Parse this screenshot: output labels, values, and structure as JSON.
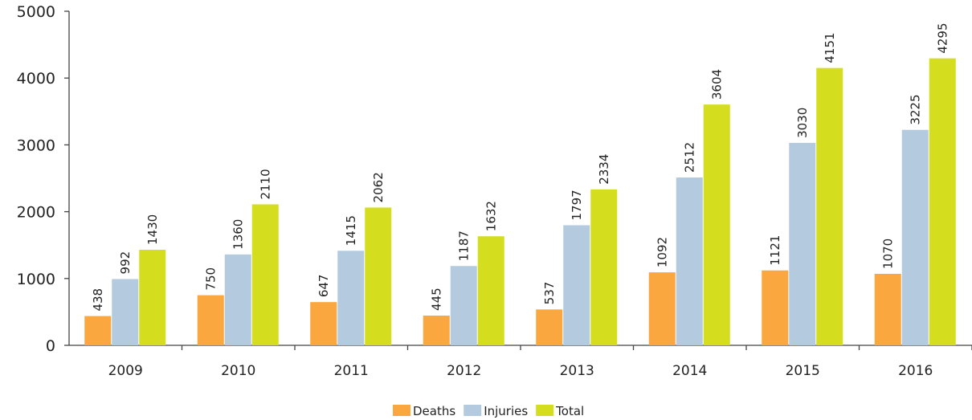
{
  "chart_data": {
    "type": "bar",
    "categories": [
      "2009",
      "2010",
      "2011",
      "2012",
      "2013",
      "2014",
      "2015",
      "2016"
    ],
    "series": [
      {
        "name": "Deaths",
        "color": "#F9A73E",
        "values": [
          438,
          750,
          647,
          445,
          537,
          1092,
          1121,
          1070
        ]
      },
      {
        "name": "Injuries",
        "color": "#B4CBDF",
        "values": [
          992,
          1360,
          1415,
          1187,
          1797,
          2512,
          3030,
          3225
        ]
      },
      {
        "name": "Total",
        "color": "#D4DE1E",
        "values": [
          1430,
          2110,
          2062,
          1632,
          2334,
          3604,
          4151,
          4295
        ]
      }
    ],
    "yticks": [
      0,
      1000,
      2000,
      3000,
      4000,
      5000
    ],
    "ylim": [
      0,
      5000
    ],
    "legend_position": "bottom-center",
    "grid": false
  }
}
